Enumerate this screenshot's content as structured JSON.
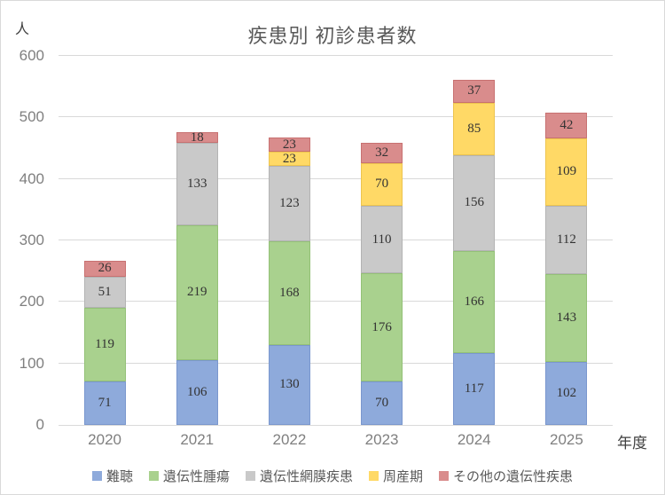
{
  "title": "疾患別 初診患者数",
  "y_axis_unit": "人",
  "x_axis_unit": "年度",
  "chart_data": {
    "type": "bar",
    "stacked": true,
    "title": "疾患別 初診患者数",
    "xlabel": "年度",
    "ylabel": "人",
    "ylim": [
      0,
      600
    ],
    "y_ticks": [
      0,
      100,
      200,
      300,
      400,
      500,
      600
    ],
    "grid": true,
    "legend_position": "bottom",
    "categories": [
      "2020",
      "2021",
      "2022",
      "2023",
      "2024",
      "2025"
    ],
    "series": [
      {
        "name": "難聴",
        "color": "#8EAADB",
        "border_color": "#7A97CE",
        "values": [
          71,
          106,
          130,
          70,
          117,
          102
        ]
      },
      {
        "name": "遺伝性腫瘍",
        "color": "#A9D18E",
        "border_color": "#94C177",
        "values": [
          119,
          219,
          168,
          176,
          166,
          143
        ]
      },
      {
        "name": "遺伝性網膜疾患",
        "color": "#C9C9C9",
        "border_color": "#B3B3B3",
        "values": [
          51,
          133,
          123,
          110,
          156,
          112
        ]
      },
      {
        "name": "周産期",
        "color": "#FFD966",
        "border_color": "#EDC44F",
        "values": [
          0,
          0,
          23,
          70,
          85,
          109
        ]
      },
      {
        "name": "その他の遺伝性疾患",
        "color": "#D98C8C",
        "border_color": "#C87171",
        "values": [
          26,
          18,
          23,
          32,
          37,
          42
        ]
      }
    ],
    "totals": [
      267,
      476,
      467,
      458,
      561,
      508
    ]
  },
  "style_colors": {
    "gridline": "#D9D9D9",
    "axis_text": "#7F7F7F",
    "title_text": "#595959",
    "data_label_text": "#333333",
    "legend_text": "#595959"
  }
}
